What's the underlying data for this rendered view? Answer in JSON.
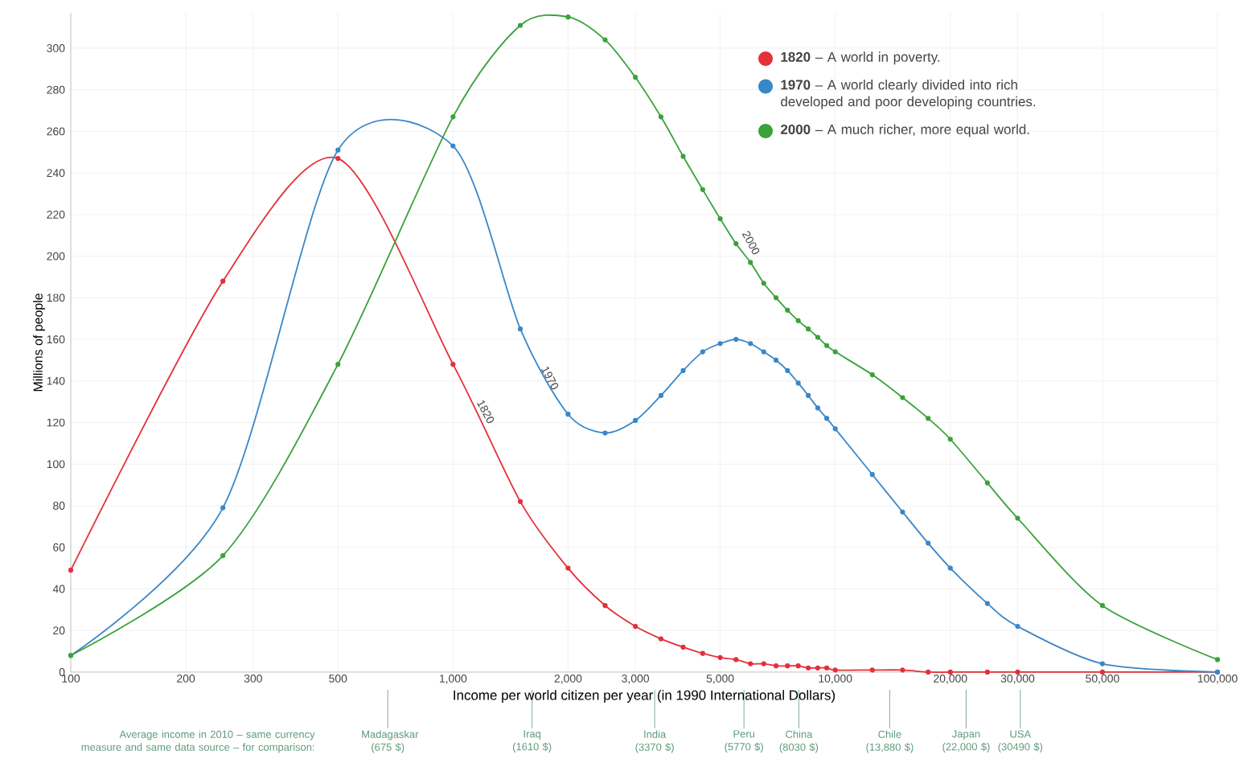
{
  "chart_data": {
    "type": "line",
    "xlabel": "Income per world citizen per year (in 1990 International Dollars)",
    "ylabel": "Millions of people",
    "log": "x",
    "x": [
      100,
      250,
      500,
      1000,
      1500,
      2000,
      2500,
      3000,
      3500,
      4000,
      4500,
      5000,
      5500,
      6000,
      6500,
      7000,
      7500,
      8000,
      8500,
      9000,
      9500,
      10000,
      12500,
      15000,
      17500,
      20000,
      25000,
      30000,
      50000,
      100000
    ],
    "series": [
      {
        "name": "**1820** – A world in poverty.",
        "color": "#e3303a",
        "values": [
          49,
          188,
          247,
          148,
          82,
          50,
          32,
          22,
          16,
          12,
          9,
          7,
          6,
          4,
          4,
          3,
          3,
          3,
          2,
          2,
          2,
          1,
          1,
          1,
          0,
          0,
          0,
          0,
          0,
          0
        ]
      },
      {
        "name": "**1970** – A world clearly divided into rich developed and poor developing countries.",
        "color": "#3a87c8",
        "values": [
          8,
          79,
          251,
          253,
          165,
          124,
          115,
          121,
          133,
          145,
          154,
          158,
          160,
          158,
          154,
          150,
          145,
          139,
          133,
          127,
          122,
          117,
          95,
          77,
          62,
          50,
          33,
          22,
          4,
          0
        ]
      },
      {
        "name": "**2000** – A much richer, more equal world.",
        "color": "#3aa23a",
        "values": [
          8,
          56,
          148,
          267,
          311,
          315,
          304,
          286,
          267,
          248,
          232,
          218,
          206,
          197,
          187,
          180,
          174,
          169,
          165,
          161,
          157,
          154,
          143,
          132,
          122,
          112,
          91,
          74,
          32,
          6
        ]
      }
    ],
    "xlim": [
      100,
      100000
    ],
    "ylim": [
      0,
      317
    ],
    "xticks": [
      100,
      200,
      300,
      500,
      {
        "value": 1000,
        "label": "1,000"
      },
      {
        "value": 2000,
        "label": "2,000"
      },
      {
        "value": 3000,
        "label": "3,000"
      },
      {
        "value": 5000,
        "label": "5,000"
      },
      {
        "value": 10000,
        "label": "10,000"
      },
      {
        "value": 20000,
        "label": "20,000"
      },
      {
        "value": 30000,
        "label": "30,000"
      },
      {
        "value": 50000,
        "label": "50,000"
      },
      {
        "value": 100000,
        "label": "100,000"
      }
    ],
    "yticks": [
      0,
      20,
      40,
      60,
      80,
      100,
      120,
      140,
      160,
      180,
      200,
      220,
      240,
      260,
      280,
      300
    ],
    "grid": true,
    "legend": "top right",
    "marker": "circle",
    "line_style": "solid",
    "annotations": [
      "1820",
      "1970",
      "2000",
      "Average income in 2010 – same currency measure and same data source – for comparison:"
    ],
    "ref_lines": [
      {
        "axis": "x",
        "value": 675,
        "label": "Madagaskar (675 $)",
        "color": "#5f9a7c"
      },
      {
        "axis": "x",
        "value": 1610,
        "label": "Iraq (1610 $)",
        "color": "#5f9a7c"
      },
      {
        "axis": "x",
        "value": 3370,
        "label": "India (3370 $)",
        "color": "#5f9a7c"
      },
      {
        "axis": "x",
        "value": 5770,
        "label": "Peru (5770 $)",
        "color": "#5f9a7c"
      },
      {
        "axis": "x",
        "value": 8030,
        "label": "China (8030 $)",
        "color": "#5f9a7c"
      },
      {
        "axis": "x",
        "value": 13880,
        "label": "Chile (13,880 $)",
        "color": "#5f9a7c"
      },
      {
        "axis": "x",
        "value": 22000,
        "label": "Japan (22,000 $)",
        "color": "#5f9a7c"
      },
      {
        "axis": "x",
        "value": 30490,
        "label": "USA (30490 $)",
        "color": "#5f9a7c"
      }
    ]
  }
}
